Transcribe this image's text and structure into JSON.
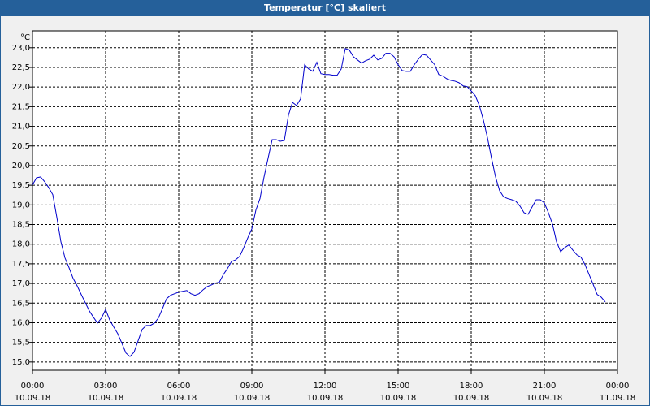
{
  "chart_data": {
    "type": "line",
    "title": "Temperatur [°C] skaliert",
    "y_unit": "°C",
    "x": [
      0,
      10,
      20,
      30,
      40,
      50,
      60,
      70,
      80,
      90,
      100,
      110,
      120,
      130,
      140,
      150,
      160,
      170,
      180,
      190,
      200,
      210,
      220,
      230,
      240,
      250,
      260,
      270,
      280,
      290,
      300,
      310,
      320,
      330,
      340,
      350,
      360,
      370,
      380,
      390,
      400,
      410,
      420,
      430,
      440,
      450,
      460,
      470,
      480,
      490,
      500,
      510,
      520,
      530,
      540,
      550,
      560,
      570,
      580,
      590,
      600,
      610,
      620,
      630,
      640,
      650,
      660,
      670,
      680,
      690,
      700,
      710,
      720,
      730,
      740,
      750,
      760,
      770,
      780,
      790,
      800,
      810,
      820,
      830,
      840,
      850,
      860,
      870,
      880,
      890,
      900,
      910,
      920,
      930,
      940,
      950,
      960,
      970,
      980,
      990,
      1000,
      1010,
      1020,
      1030,
      1040,
      1050,
      1060,
      1070,
      1080,
      1090,
      1100,
      1110,
      1120,
      1130,
      1140,
      1150,
      1160,
      1170,
      1180,
      1190,
      1200,
      1210,
      1220,
      1230,
      1240,
      1250,
      1260,
      1270,
      1280,
      1290,
      1300,
      1310,
      1320,
      1330,
      1340,
      1350,
      1360,
      1370,
      1380,
      1390,
      1400,
      1410
    ],
    "series": [
      {
        "color": "#0000cc",
        "values": [
          19.51,
          19.69,
          19.71,
          19.59,
          19.44,
          19.26,
          18.68,
          18.06,
          17.65,
          17.4,
          17.13,
          16.94,
          16.72,
          16.51,
          16.3,
          16.14,
          15.99,
          16.12,
          16.34,
          16.07,
          15.89,
          15.72,
          15.48,
          15.23,
          15.14,
          15.25,
          15.54,
          15.83,
          15.93,
          15.93,
          15.99,
          16.12,
          16.36,
          16.61,
          16.7,
          16.74,
          16.78,
          16.8,
          16.82,
          16.74,
          16.7,
          16.74,
          16.84,
          16.92,
          16.96,
          17.01,
          17.03,
          17.23,
          17.38,
          17.56,
          17.6,
          17.69,
          17.91,
          18.16,
          18.39,
          18.87,
          19.16,
          19.71,
          20.19,
          20.66,
          20.66,
          20.62,
          20.64,
          21.28,
          21.61,
          21.53,
          21.7,
          22.57,
          22.46,
          22.4,
          22.63,
          22.34,
          22.32,
          22.32,
          22.3,
          22.3,
          22.46,
          22.98,
          22.94,
          22.77,
          22.69,
          22.61,
          22.67,
          22.71,
          22.81,
          22.69,
          22.73,
          22.86,
          22.86,
          22.77,
          22.57,
          22.42,
          22.4,
          22.4,
          22.57,
          22.71,
          22.83,
          22.81,
          22.69,
          22.57,
          22.32,
          22.28,
          22.21,
          22.17,
          22.15,
          22.11,
          22.03,
          22.01,
          21.9,
          21.78,
          21.53,
          21.16,
          20.71,
          20.19,
          19.71,
          19.36,
          19.2,
          19.16,
          19.13,
          19.09,
          18.97,
          18.8,
          18.76,
          18.95,
          19.13,
          19.13,
          19.05,
          18.8,
          18.51,
          18.06,
          17.81,
          17.91,
          17.98,
          17.85,
          17.73,
          17.67,
          17.48,
          17.23,
          16.98,
          16.72,
          16.65,
          16.53
        ]
      }
    ],
    "xlim": [
      0,
      1440
    ],
    "xticks": [
      {
        "value": 0,
        "label": "00:00",
        "date": "10.09.18"
      },
      {
        "value": 180,
        "label": "03:00",
        "date": "10.09.18"
      },
      {
        "value": 360,
        "label": "06:00",
        "date": "10.09.18"
      },
      {
        "value": 540,
        "label": "09:00",
        "date": "10.09.18"
      },
      {
        "value": 720,
        "label": "12:00",
        "date": "10.09.18"
      },
      {
        "value": 900,
        "label": "15:00",
        "date": "10.09.18"
      },
      {
        "value": 1080,
        "label": "18:00",
        "date": "10.09.18"
      },
      {
        "value": 1260,
        "label": "21:00",
        "date": "10.09.18"
      },
      {
        "value": 1440,
        "label": "00:00",
        "date": "11.09.18"
      }
    ],
    "ylim": [
      14.79,
      23.43
    ],
    "yticks": [
      {
        "value": 15,
        "label": "15,0"
      },
      {
        "value": 15.5,
        "label": "15,5"
      },
      {
        "value": 16,
        "label": "16,0"
      },
      {
        "value": 16.5,
        "label": "16,5"
      },
      {
        "value": 17,
        "label": "17,0"
      },
      {
        "value": 17.5,
        "label": "17,5"
      },
      {
        "value": 18,
        "label": "18,0"
      },
      {
        "value": 18.5,
        "label": "18,5"
      },
      {
        "value": 19,
        "label": "19,0"
      },
      {
        "value": 19.5,
        "label": "19,5"
      },
      {
        "value": 20,
        "label": "20,0"
      },
      {
        "value": 20.5,
        "label": "20,5"
      },
      {
        "value": 21,
        "label": "21,0"
      },
      {
        "value": 21.5,
        "label": "21,5"
      },
      {
        "value": 22,
        "label": "22,0"
      },
      {
        "value": 22.5,
        "label": "22,5"
      },
      {
        "value": 23,
        "label": "23,0"
      }
    ],
    "grid": true
  }
}
